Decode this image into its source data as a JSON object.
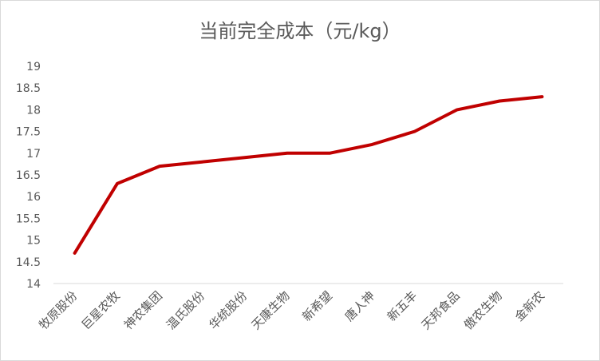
{
  "chart_data": {
    "type": "line",
    "title": "当前完全成本（元/kg）",
    "categories": [
      "牧原股份",
      "巨星农牧",
      "神农集团",
      "温氏股份",
      "华统股份",
      "天康生物",
      "新希望",
      "唐人神",
      "新五丰",
      "天邦食品",
      "傲农生物",
      "金新农"
    ],
    "series": [
      {
        "values": [
          14.7,
          16.3,
          16.7,
          16.8,
          16.9,
          17.0,
          17.0,
          17.2,
          17.5,
          18.0,
          18.2,
          18.3
        ],
        "color": "#c00000"
      }
    ],
    "y_ticks": [
      "14",
      "14.5",
      "15",
      "15.5",
      "16",
      "16.5",
      "17",
      "17.5",
      "18",
      "18.5",
      "19"
    ],
    "ylim": [
      14,
      19
    ],
    "grid": false,
    "legend": "none"
  }
}
